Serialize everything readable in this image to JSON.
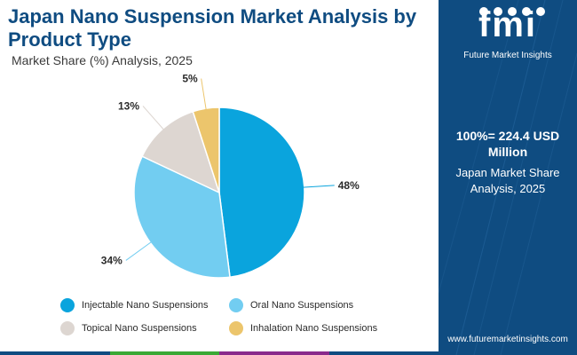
{
  "header": {
    "title": "Japan Nano Suspension Market Analysis by Product Type",
    "subtitle": "Market Share (%) Analysis, 2025"
  },
  "chart_data": {
    "type": "pie",
    "title": "Japan Nano Suspension Market Analysis by Product Type",
    "subtitle": "Market Share (%) Analysis, 2025",
    "categories": [
      "Injectable Nano Suspensions",
      "Oral Nano Suspensions",
      "Topical Nano Suspensions",
      "Inhalation Nano Suspensions"
    ],
    "values": [
      48,
      34,
      13,
      5
    ],
    "labels": [
      "48%",
      "34%",
      "13%",
      "5%"
    ],
    "colors": [
      "#0aa4dd",
      "#72cdf1",
      "#ddd6d1",
      "#ecc56c"
    ],
    "legend_position": "bottom"
  },
  "side_panel": {
    "logo_text": "fmi",
    "logo_subtitle": "Future Market Insights",
    "total_value": "100%= 224.4 USD Million",
    "caption": "Japan Market Share Analysis, 2025",
    "website": "www.futuremarketinsights.com",
    "background_color": "#0f4c81"
  },
  "bottom_bar_colors": [
    "#0f4c81",
    "#3aa935",
    "#8a2a8c",
    "#0f4c81"
  ]
}
